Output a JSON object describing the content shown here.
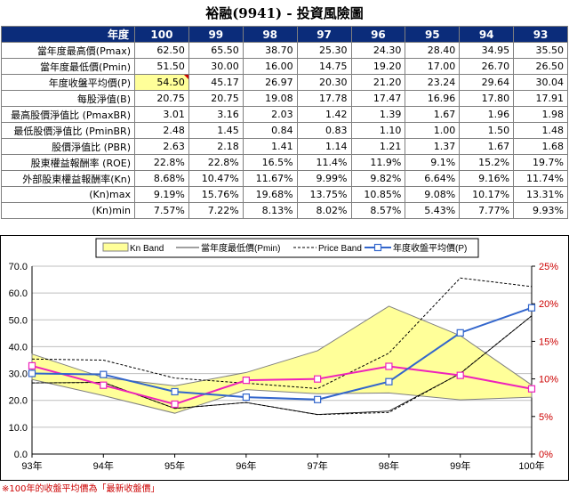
{
  "title": "裕融(9941) - 投資風險圖",
  "table": {
    "header": [
      "年度",
      "100",
      "99",
      "98",
      "97",
      "96",
      "95",
      "94",
      "93"
    ],
    "rows": [
      {
        "label": "當年度最高價(Pmax)",
        "values": [
          "62.50",
          "65.50",
          "38.70",
          "25.30",
          "24.30",
          "28.40",
          "34.95",
          "35.50"
        ]
      },
      {
        "label": "當年度最低價(Pmin)",
        "values": [
          "51.50",
          "30.00",
          "16.00",
          "14.75",
          "19.20",
          "17.00",
          "26.70",
          "26.50"
        ]
      },
      {
        "label": "年度收盤平均價(P)",
        "values": [
          "54.50",
          "45.17",
          "26.97",
          "20.30",
          "21.20",
          "23.24",
          "29.64",
          "30.04"
        ],
        "highlight_first": true
      },
      {
        "label": "每股淨值(B)",
        "values": [
          "20.75",
          "20.75",
          "19.08",
          "17.78",
          "17.47",
          "16.96",
          "17.80",
          "17.91"
        ]
      },
      {
        "label": "最高股價淨值比 (PmaxBR)",
        "values": [
          "3.01",
          "3.16",
          "2.03",
          "1.42",
          "1.39",
          "1.67",
          "1.96",
          "1.98"
        ]
      },
      {
        "label": "最低股價淨值比 (PminBR)",
        "values": [
          "2.48",
          "1.45",
          "0.84",
          "0.83",
          "1.10",
          "1.00",
          "1.50",
          "1.48"
        ]
      },
      {
        "label": "股價淨值比 (PBR)",
        "values": [
          "2.63",
          "2.18",
          "1.41",
          "1.14",
          "1.21",
          "1.37",
          "1.67",
          "1.68"
        ]
      },
      {
        "label": "股東權益報酬率 (ROE)",
        "values": [
          "22.8%",
          "22.8%",
          "16.5%",
          "11.4%",
          "11.9%",
          "9.1%",
          "15.2%",
          "19.7%"
        ]
      },
      {
        "label": "外部股東權益報酬率(Kn)",
        "values": [
          "8.68%",
          "10.47%",
          "11.67%",
          "9.99%",
          "9.82%",
          "6.64%",
          "9.16%",
          "11.74%"
        ]
      },
      {
        "label": "(Kn)max",
        "values": [
          "9.19%",
          "15.76%",
          "19.68%",
          "13.75%",
          "10.85%",
          "9.08%",
          "10.17%",
          "13.31%"
        ]
      },
      {
        "label": "(Kn)min",
        "values": [
          "7.57%",
          "7.22%",
          "8.13%",
          "8.02%",
          "8.57%",
          "5.43%",
          "7.77%",
          "9.93%"
        ]
      }
    ]
  },
  "chart_data": {
    "type": "line",
    "categories": [
      "93年",
      "94年",
      "95年",
      "96年",
      "97年",
      "98年",
      "99年",
      "100年"
    ],
    "ylim": [
      0,
      70
    ],
    "yticks": [
      "0.0",
      "10.0",
      "20.0",
      "30.0",
      "40.0",
      "50.0",
      "60.0",
      "70.0"
    ],
    "y2lim": [
      0,
      25
    ],
    "y2ticks": [
      "0%",
      "5%",
      "10%",
      "15%",
      "20%",
      "25%"
    ],
    "legend_position": "top",
    "legend": [
      "Kn Band",
      "當年度最低價(Pmin)",
      "Price Band",
      "年度收盤平均價(P)"
    ],
    "kn_band": {
      "name": "Kn Band",
      "upper": [
        13.31,
        10.17,
        9.08,
        10.85,
        13.75,
        19.68,
        15.76,
        9.19
      ],
      "lower": [
        9.93,
        7.77,
        5.43,
        8.57,
        8.02,
        8.13,
        7.22,
        7.57
      ],
      "fill": "#ffff99",
      "stroke": "#808080"
    },
    "pmin": {
      "name": "當年度最低價(Pmin)",
      "values": [
        26.5,
        26.7,
        17.0,
        19.2,
        14.75,
        16.0,
        30.0,
        51.5
      ],
      "color": "#000000"
    },
    "price_band": {
      "name": "Price Band",
      "upper": [
        35.4,
        35.0,
        28.3,
        26.4,
        24.4,
        37.6,
        65.6,
        62.4
      ],
      "lower": [
        26.5,
        26.7,
        17.0,
        19.2,
        14.7,
        15.5,
        30.1,
        51.5
      ],
      "color": "#000000"
    },
    "price": {
      "name": "年度收盤平均價(P)",
      "values": [
        30.04,
        29.64,
        23.24,
        21.2,
        20.3,
        26.97,
        45.17,
        54.5
      ],
      "color": "#3366cc"
    },
    "kn": {
      "name": "外部股東權益報酬率(Kn)",
      "values": [
        11.74,
        9.16,
        6.64,
        9.82,
        9.99,
        11.67,
        10.47,
        8.68
      ],
      "color": "#ee22bb"
    },
    "colors": {
      "left_axis": "#000000",
      "right_axis": "#cc0000",
      "grid": "#bfbfbf"
    }
  },
  "footnote": "※100年的收盤平均價為「最新收盤價」"
}
